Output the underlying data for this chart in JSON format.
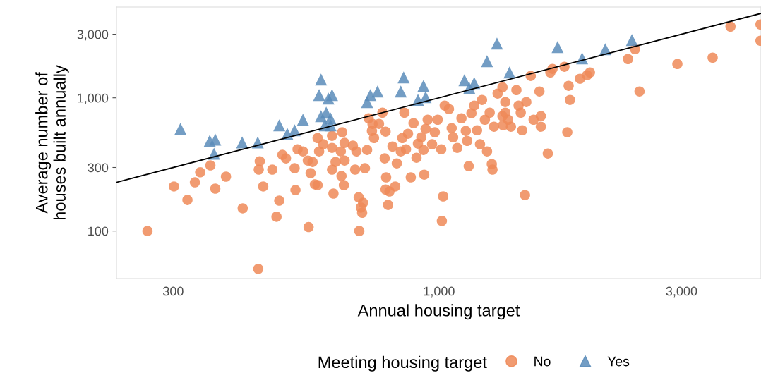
{
  "chart_data": {
    "type": "scatter",
    "xlabel": "Annual housing target",
    "ylabel": "Average number of\nhouses built annually",
    "legend_title": "Meeting housing target",
    "legend": "bottom",
    "grid": false,
    "log": "xy",
    "xlim": [
      232,
      4300
    ],
    "ylim": [
      44,
      4800
    ],
    "xticks": [
      300,
      {
        "value": 1000,
        "label": "1,000"
      },
      {
        "value": 3000,
        "label": "3,000"
      }
    ],
    "yticks": [
      100,
      300,
      {
        "value": 1000,
        "label": "1,000"
      },
      {
        "value": 3000,
        "label": "3,000"
      }
    ],
    "series": [
      {
        "name": "No",
        "color": "#ee8a58",
        "marker": "circle",
        "x": [
          267,
          301,
          320,
          331,
          339,
          355,
          363,
          381,
          411,
          441,
          444,
          442,
          451,
          470,
          479,
          485,
          492,
          500,
          520,
          522,
          554,
          559,
          564,
          570,
          577,
          581,
          592,
          577,
          616,
          620,
          616,
          626,
          643,
          650,
          641,
          645,
          652,
          677,
          688,
          684,
          695,
          702,
          706,
          697,
          709,
          715,
          722,
          727,
          738,
          745,
          762,
          774,
          785,
          782,
          787,
          785,
          794,
          799,
          810,
          820,
          826,
          841,
          847,
          861,
          855,
          869,
          880,
          891,
          903,
          909,
          923,
          932,
          935,
          941,
          950,
          969,
          981,
          994,
          1010,
          1019,
          1013,
          1026,
          1046,
          1059,
          1066,
          1086,
          1107,
          1129,
          1136,
          1144,
          1158,
          1173,
          1188,
          1204,
          1215,
          1231,
          1243,
          1258,
          1270,
          1274,
          1283,
          1304,
          1333,
          1350,
          1350,
          1367,
          1385,
          1420,
          1434,
          1448,
          1458,
          1476,
          1485,
          1515,
          1535,
          1576,
          1586,
          1586,
          1637,
          1656,
          1672,
          1765,
          1799,
          1810,
          1788,
          1894,
          1956,
          1981,
          2354,
          2430,
          2480,
          2944,
          3454,
          3745,
          4290,
          4290,
          527,
          540,
          552,
          616,
          652,
          740,
          1337,
          1333
        ],
        "values": [
          100,
          216,
          171,
          232,
          276,
          311,
          208,
          256,
          148,
          52,
          334,
          289,
          216,
          289,
          128,
          169,
          373,
          351,
          296,
          203,
          107,
          272,
          330,
          224,
          221,
          396,
          448,
          499,
          421,
          191,
          289,
          330,
          259,
          221,
          396,
          551,
          459,
          437,
          396,
          289,
          179,
          150,
          137,
          100,
          163,
          296,
          406,
          702,
          564,
          499,
          637,
          774,
          557,
          351,
          253,
          205,
          157,
          198,
          431,
          216,
          322,
          396,
          499,
          411,
          774,
          537,
          253,
          645,
          355,
          453,
          505,
          406,
          265,
          585,
          685,
          448,
          551,
          685,
          411,
          182,
          119,
          875,
          823,
          592,
          505,
          421,
          702,
          564,
          475,
          307,
          765,
          875,
          570,
          448,
          964,
          685,
          396,
          774,
          318,
          289,
          607,
          1076,
          1200,
          930,
          774,
          685,
          607,
          1143,
          875,
          774,
          570,
          186,
          930,
          1459,
          685,
          1116,
          729,
          607,
          382,
          1550,
          1648,
          1710,
          1230,
          964,
          551,
          1390,
          1477,
          1550,
          1954,
          2318,
          1116,
          1793,
          2002,
          3422,
          3550,
          2680,
          411,
          396,
          338,
          518,
          338,
          637,
          622,
          729
        ]
      },
      {
        "name": "Yes",
        "color": "#5b8cba",
        "marker": "triangle",
        "x": [
          310,
          354,
          363,
          361,
          410,
          440,
          485,
          503,
          520,
          540,
          586,
          581,
          606,
          616,
          586,
          600,
          612,
          596,
          612,
          733,
          722,
          757,
          852,
          841,
          932,
          941,
          909,
          1122,
          1147,
          1173,
          1243,
          1300,
          1376,
          1711,
          1912,
          2124,
          2396
        ],
        "values": [
          585,
          475,
          485,
          380,
          463,
          463,
          622,
          537,
          570,
          685,
          1373,
          1050,
          988,
          1050,
          728,
          774,
          700,
          622,
          622,
          1050,
          930,
          1116,
          1424,
          1116,
          1230,
          1012,
          964,
          1355,
          1186,
          1292,
          1886,
          2552,
          1549,
          2402,
          1978,
          2318,
          2713
        ]
      },
      {
        "type": "line",
        "color": "#000000",
        "x": [
          232,
          4300
        ],
        "values": [
          232,
          4300
        ]
      }
    ]
  }
}
